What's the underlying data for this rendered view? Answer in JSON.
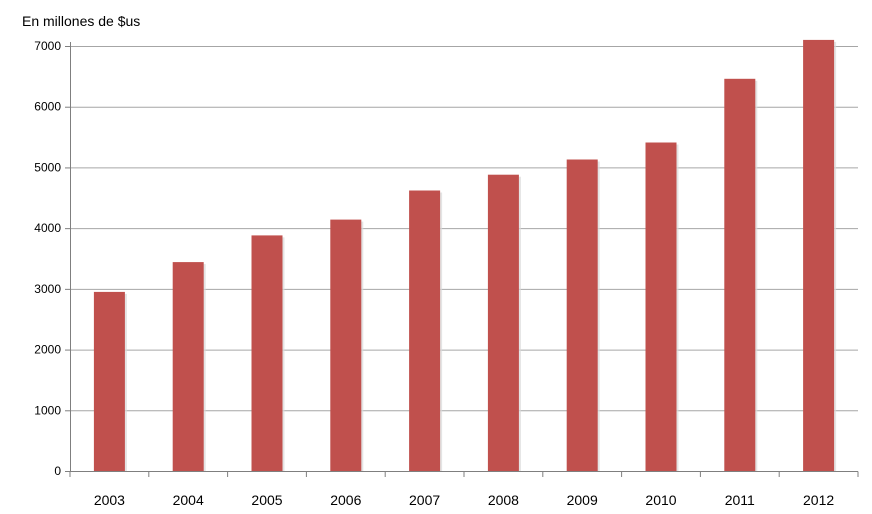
{
  "chart_data": {
    "type": "bar",
    "title": "",
    "xlabel": "",
    "ylabel": "En millones de $us",
    "categories": [
      "2003",
      "2004",
      "2005",
      "2006",
      "2007",
      "2008",
      "2009",
      "2010",
      "2011",
      "2012"
    ],
    "values": [
      2950,
      3440,
      3880,
      4140,
      4620,
      4880,
      5130,
      5410,
      6460,
      7100
    ],
    "ylim": [
      0,
      7000
    ],
    "yticks": [
      0,
      1000,
      2000,
      3000,
      4000,
      5000,
      6000,
      7000
    ],
    "grid": true,
    "legend": "none",
    "colors": {
      "bar": "#c0504d",
      "grid": "#a6a6a6",
      "axis": "#7f7f7f"
    }
  }
}
